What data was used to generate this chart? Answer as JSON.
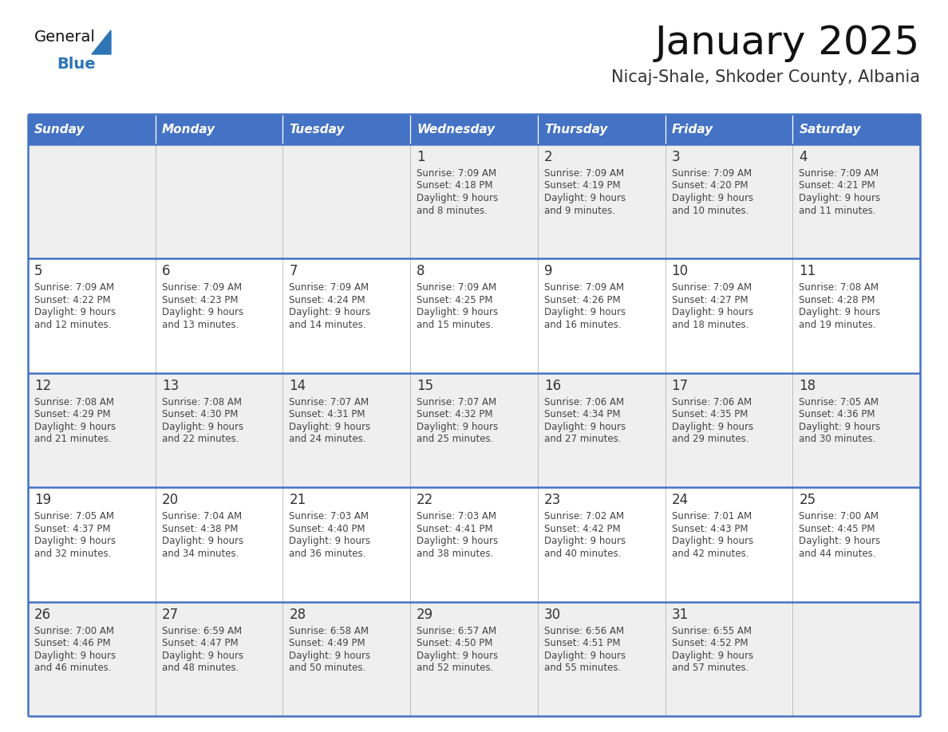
{
  "title": "January 2025",
  "subtitle": "Nicaj-Shale, Shkoder County, Albania",
  "header_bg_color": "#4472C4",
  "header_text_color": "#FFFFFF",
  "cell_bg_color_odd": "#EFEFEF",
  "cell_bg_color_even": "#FFFFFF",
  "grid_line_color": "#4472C4",
  "day_number_color": "#333333",
  "day_text_color": "#444444",
  "days_of_week": [
    "Sunday",
    "Monday",
    "Tuesday",
    "Wednesday",
    "Thursday",
    "Friday",
    "Saturday"
  ],
  "weeks": [
    [
      {
        "day": "",
        "sunrise": "",
        "sunset": "",
        "daylight_line1": "",
        "daylight_line2": ""
      },
      {
        "day": "",
        "sunrise": "",
        "sunset": "",
        "daylight_line1": "",
        "daylight_line2": ""
      },
      {
        "day": "",
        "sunrise": "",
        "sunset": "",
        "daylight_line1": "",
        "daylight_line2": ""
      },
      {
        "day": "1",
        "sunrise": "7:09 AM",
        "sunset": "4:18 PM",
        "daylight_line1": "9 hours",
        "daylight_line2": "and 8 minutes."
      },
      {
        "day": "2",
        "sunrise": "7:09 AM",
        "sunset": "4:19 PM",
        "daylight_line1": "9 hours",
        "daylight_line2": "and 9 minutes."
      },
      {
        "day": "3",
        "sunrise": "7:09 AM",
        "sunset": "4:20 PM",
        "daylight_line1": "9 hours",
        "daylight_line2": "and 10 minutes."
      },
      {
        "day": "4",
        "sunrise": "7:09 AM",
        "sunset": "4:21 PM",
        "daylight_line1": "9 hours",
        "daylight_line2": "and 11 minutes."
      }
    ],
    [
      {
        "day": "5",
        "sunrise": "7:09 AM",
        "sunset": "4:22 PM",
        "daylight_line1": "9 hours",
        "daylight_line2": "and 12 minutes."
      },
      {
        "day": "6",
        "sunrise": "7:09 AM",
        "sunset": "4:23 PM",
        "daylight_line1": "9 hours",
        "daylight_line2": "and 13 minutes."
      },
      {
        "day": "7",
        "sunrise": "7:09 AM",
        "sunset": "4:24 PM",
        "daylight_line1": "9 hours",
        "daylight_line2": "and 14 minutes."
      },
      {
        "day": "8",
        "sunrise": "7:09 AM",
        "sunset": "4:25 PM",
        "daylight_line1": "9 hours",
        "daylight_line2": "and 15 minutes."
      },
      {
        "day": "9",
        "sunrise": "7:09 AM",
        "sunset": "4:26 PM",
        "daylight_line1": "9 hours",
        "daylight_line2": "and 16 minutes."
      },
      {
        "day": "10",
        "sunrise": "7:09 AM",
        "sunset": "4:27 PM",
        "daylight_line1": "9 hours",
        "daylight_line2": "and 18 minutes."
      },
      {
        "day": "11",
        "sunrise": "7:08 AM",
        "sunset": "4:28 PM",
        "daylight_line1": "9 hours",
        "daylight_line2": "and 19 minutes."
      }
    ],
    [
      {
        "day": "12",
        "sunrise": "7:08 AM",
        "sunset": "4:29 PM",
        "daylight_line1": "9 hours",
        "daylight_line2": "and 21 minutes."
      },
      {
        "day": "13",
        "sunrise": "7:08 AM",
        "sunset": "4:30 PM",
        "daylight_line1": "9 hours",
        "daylight_line2": "and 22 minutes."
      },
      {
        "day": "14",
        "sunrise": "7:07 AM",
        "sunset": "4:31 PM",
        "daylight_line1": "9 hours",
        "daylight_line2": "and 24 minutes."
      },
      {
        "day": "15",
        "sunrise": "7:07 AM",
        "sunset": "4:32 PM",
        "daylight_line1": "9 hours",
        "daylight_line2": "and 25 minutes."
      },
      {
        "day": "16",
        "sunrise": "7:06 AM",
        "sunset": "4:34 PM",
        "daylight_line1": "9 hours",
        "daylight_line2": "and 27 minutes."
      },
      {
        "day": "17",
        "sunrise": "7:06 AM",
        "sunset": "4:35 PM",
        "daylight_line1": "9 hours",
        "daylight_line2": "and 29 minutes."
      },
      {
        "day": "18",
        "sunrise": "7:05 AM",
        "sunset": "4:36 PM",
        "daylight_line1": "9 hours",
        "daylight_line2": "and 30 minutes."
      }
    ],
    [
      {
        "day": "19",
        "sunrise": "7:05 AM",
        "sunset": "4:37 PM",
        "daylight_line1": "9 hours",
        "daylight_line2": "and 32 minutes."
      },
      {
        "day": "20",
        "sunrise": "7:04 AM",
        "sunset": "4:38 PM",
        "daylight_line1": "9 hours",
        "daylight_line2": "and 34 minutes."
      },
      {
        "day": "21",
        "sunrise": "7:03 AM",
        "sunset": "4:40 PM",
        "daylight_line1": "9 hours",
        "daylight_line2": "and 36 minutes."
      },
      {
        "day": "22",
        "sunrise": "7:03 AM",
        "sunset": "4:41 PM",
        "daylight_line1": "9 hours",
        "daylight_line2": "and 38 minutes."
      },
      {
        "day": "23",
        "sunrise": "7:02 AM",
        "sunset": "4:42 PM",
        "daylight_line1": "9 hours",
        "daylight_line2": "and 40 minutes."
      },
      {
        "day": "24",
        "sunrise": "7:01 AM",
        "sunset": "4:43 PM",
        "daylight_line1": "9 hours",
        "daylight_line2": "and 42 minutes."
      },
      {
        "day": "25",
        "sunrise": "7:00 AM",
        "sunset": "4:45 PM",
        "daylight_line1": "9 hours",
        "daylight_line2": "and 44 minutes."
      }
    ],
    [
      {
        "day": "26",
        "sunrise": "7:00 AM",
        "sunset": "4:46 PM",
        "daylight_line1": "9 hours",
        "daylight_line2": "and 46 minutes."
      },
      {
        "day": "27",
        "sunrise": "6:59 AM",
        "sunset": "4:47 PM",
        "daylight_line1": "9 hours",
        "daylight_line2": "and 48 minutes."
      },
      {
        "day": "28",
        "sunrise": "6:58 AM",
        "sunset": "4:49 PM",
        "daylight_line1": "9 hours",
        "daylight_line2": "and 50 minutes."
      },
      {
        "day": "29",
        "sunrise": "6:57 AM",
        "sunset": "4:50 PM",
        "daylight_line1": "9 hours",
        "daylight_line2": "and 52 minutes."
      },
      {
        "day": "30",
        "sunrise": "6:56 AM",
        "sunset": "4:51 PM",
        "daylight_line1": "9 hours",
        "daylight_line2": "and 55 minutes."
      },
      {
        "day": "31",
        "sunrise": "6:55 AM",
        "sunset": "4:52 PM",
        "daylight_line1": "9 hours",
        "daylight_line2": "and 57 minutes."
      },
      {
        "day": "",
        "sunrise": "",
        "sunset": "",
        "daylight_line1": "",
        "daylight_line2": ""
      }
    ]
  ],
  "logo_text_general": "General",
  "logo_text_blue": "Blue",
  "logo_general_color": "#111111",
  "logo_blue_color": "#2E75B6",
  "logo_triangle_color": "#2E75B6"
}
